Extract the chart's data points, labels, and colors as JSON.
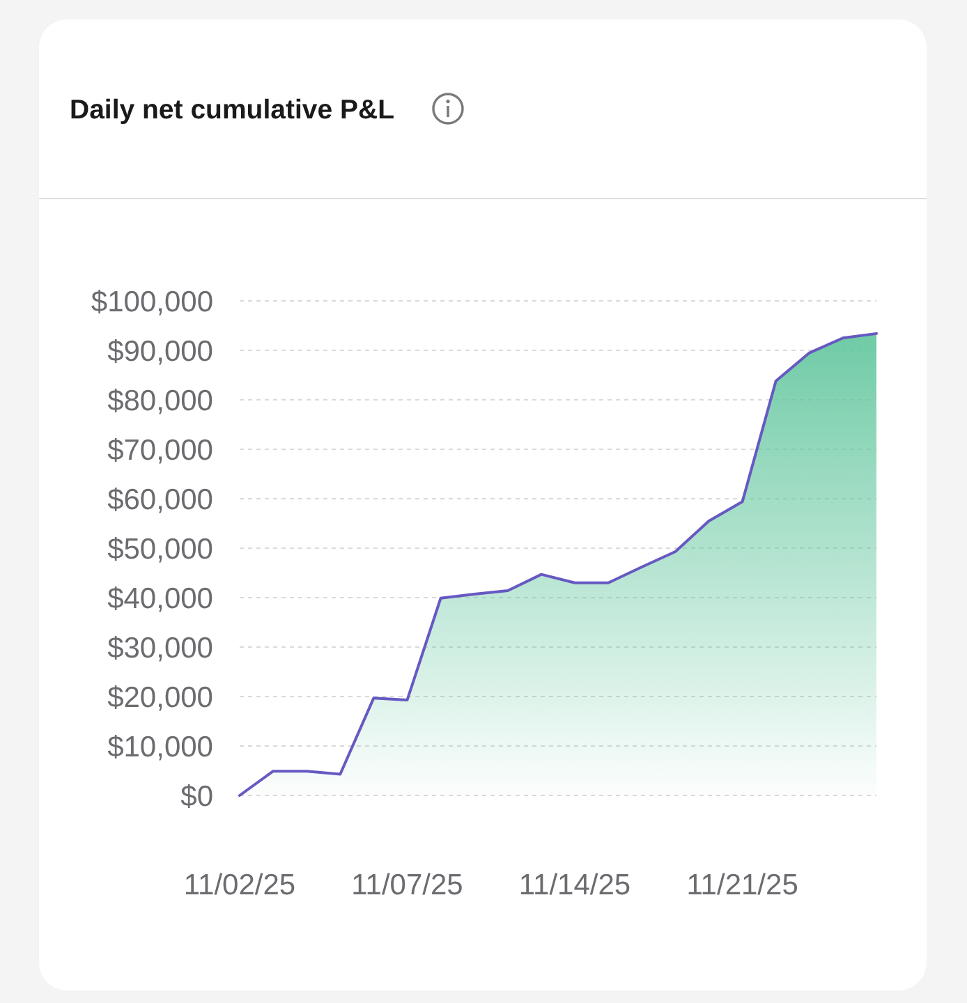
{
  "chart_data": {
    "type": "area",
    "title": "Daily net cumulative P&L",
    "categories": [
      "11/02/25",
      null,
      null,
      null,
      null,
      "11/07/25",
      null,
      null,
      null,
      null,
      "11/14/25",
      null,
      null,
      null,
      null,
      "11/21/25",
      null,
      null,
      null,
      null
    ],
    "values": [
      0,
      4900,
      4900,
      4300,
      19700,
      19300,
      39900,
      40700,
      41400,
      44700,
      43000,
      43000,
      46200,
      49300,
      55500,
      59400,
      83800,
      89500,
      92500,
      93400
    ],
    "color": "#5fc59c",
    "ylim": [
      0,
      100000
    ],
    "yticks": [
      {
        "value": 0,
        "label": "$0"
      },
      {
        "value": 10000,
        "label": "$10,000"
      },
      {
        "value": 20000,
        "label": "$20,000"
      },
      {
        "value": 30000,
        "label": "$30,000"
      },
      {
        "value": 40000,
        "label": "$40,000"
      },
      {
        "value": 50000,
        "label": "$50,000"
      },
      {
        "value": 60000,
        "label": "$60,000"
      },
      {
        "value": 70000,
        "label": "$70,000"
      },
      {
        "value": 80000,
        "label": "$80,000"
      },
      {
        "value": 90000,
        "label": "$90,000"
      },
      {
        "value": 100000,
        "label": "$100,000"
      }
    ],
    "grid": "y",
    "line_style": "solid"
  }
}
